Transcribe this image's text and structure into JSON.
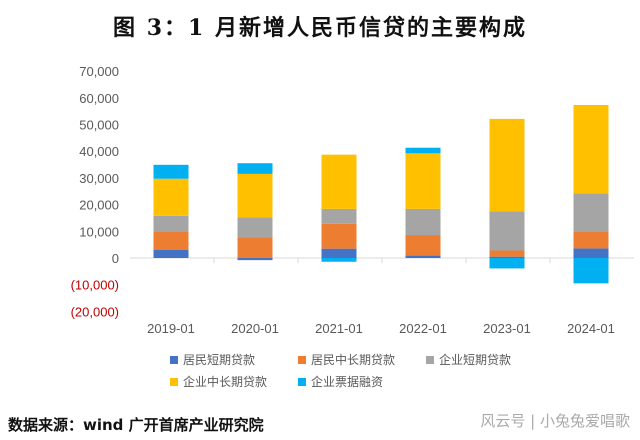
{
  "title": "图 3：1 月新增人民币信贷的主要构成",
  "source": "数据来源：wind  广开首席产业研究院",
  "watermark": "风云号 | 小兔兔爱唱歌",
  "chart_data": {
    "type": "bar",
    "stacked": true,
    "title": "图 3：1 月新增人民币信贷的主要构成",
    "categories": [
      "2019-01",
      "2020-01",
      "2021-01",
      "2022-01",
      "2023-01",
      "2024-01"
    ],
    "ylim": [
      -20000,
      70000
    ],
    "yticks": [
      70000,
      60000,
      50000,
      40000,
      30000,
      20000,
      10000,
      0,
      -10000,
      -20000
    ],
    "ytick_labels": [
      "70,000",
      "60,000",
      "50,000",
      "40,000",
      "30,000",
      "20,000",
      "10,000",
      "0",
      "(10,000)",
      "(20,000)"
    ],
    "grid": false,
    "legend_position": "bottom",
    "series": [
      {
        "name": "居民短期贷款",
        "color": "#4472c4",
        "values": [
          3000,
          -800,
          3500,
          900,
          500,
          3600
        ]
      },
      {
        "name": "居民中长期贷款",
        "color": "#ed7d31",
        "values": [
          6900,
          7700,
          9300,
          7700,
          2300,
          6300
        ]
      },
      {
        "name": "企业短期贷款",
        "color": "#a5a5a5",
        "values": [
          5900,
          7500,
          5600,
          9800,
          14700,
          14300
        ]
      },
      {
        "name": "企业中长期贷款",
        "color": "#ffc000",
        "values": [
          13900,
          16300,
          20300,
          20800,
          34600,
          33100
        ]
      },
      {
        "name": "企业票据融资",
        "color": "#00b0f0",
        "values": [
          5200,
          4000,
          -1400,
          2100,
          -3900,
          -9500
        ]
      }
    ]
  }
}
